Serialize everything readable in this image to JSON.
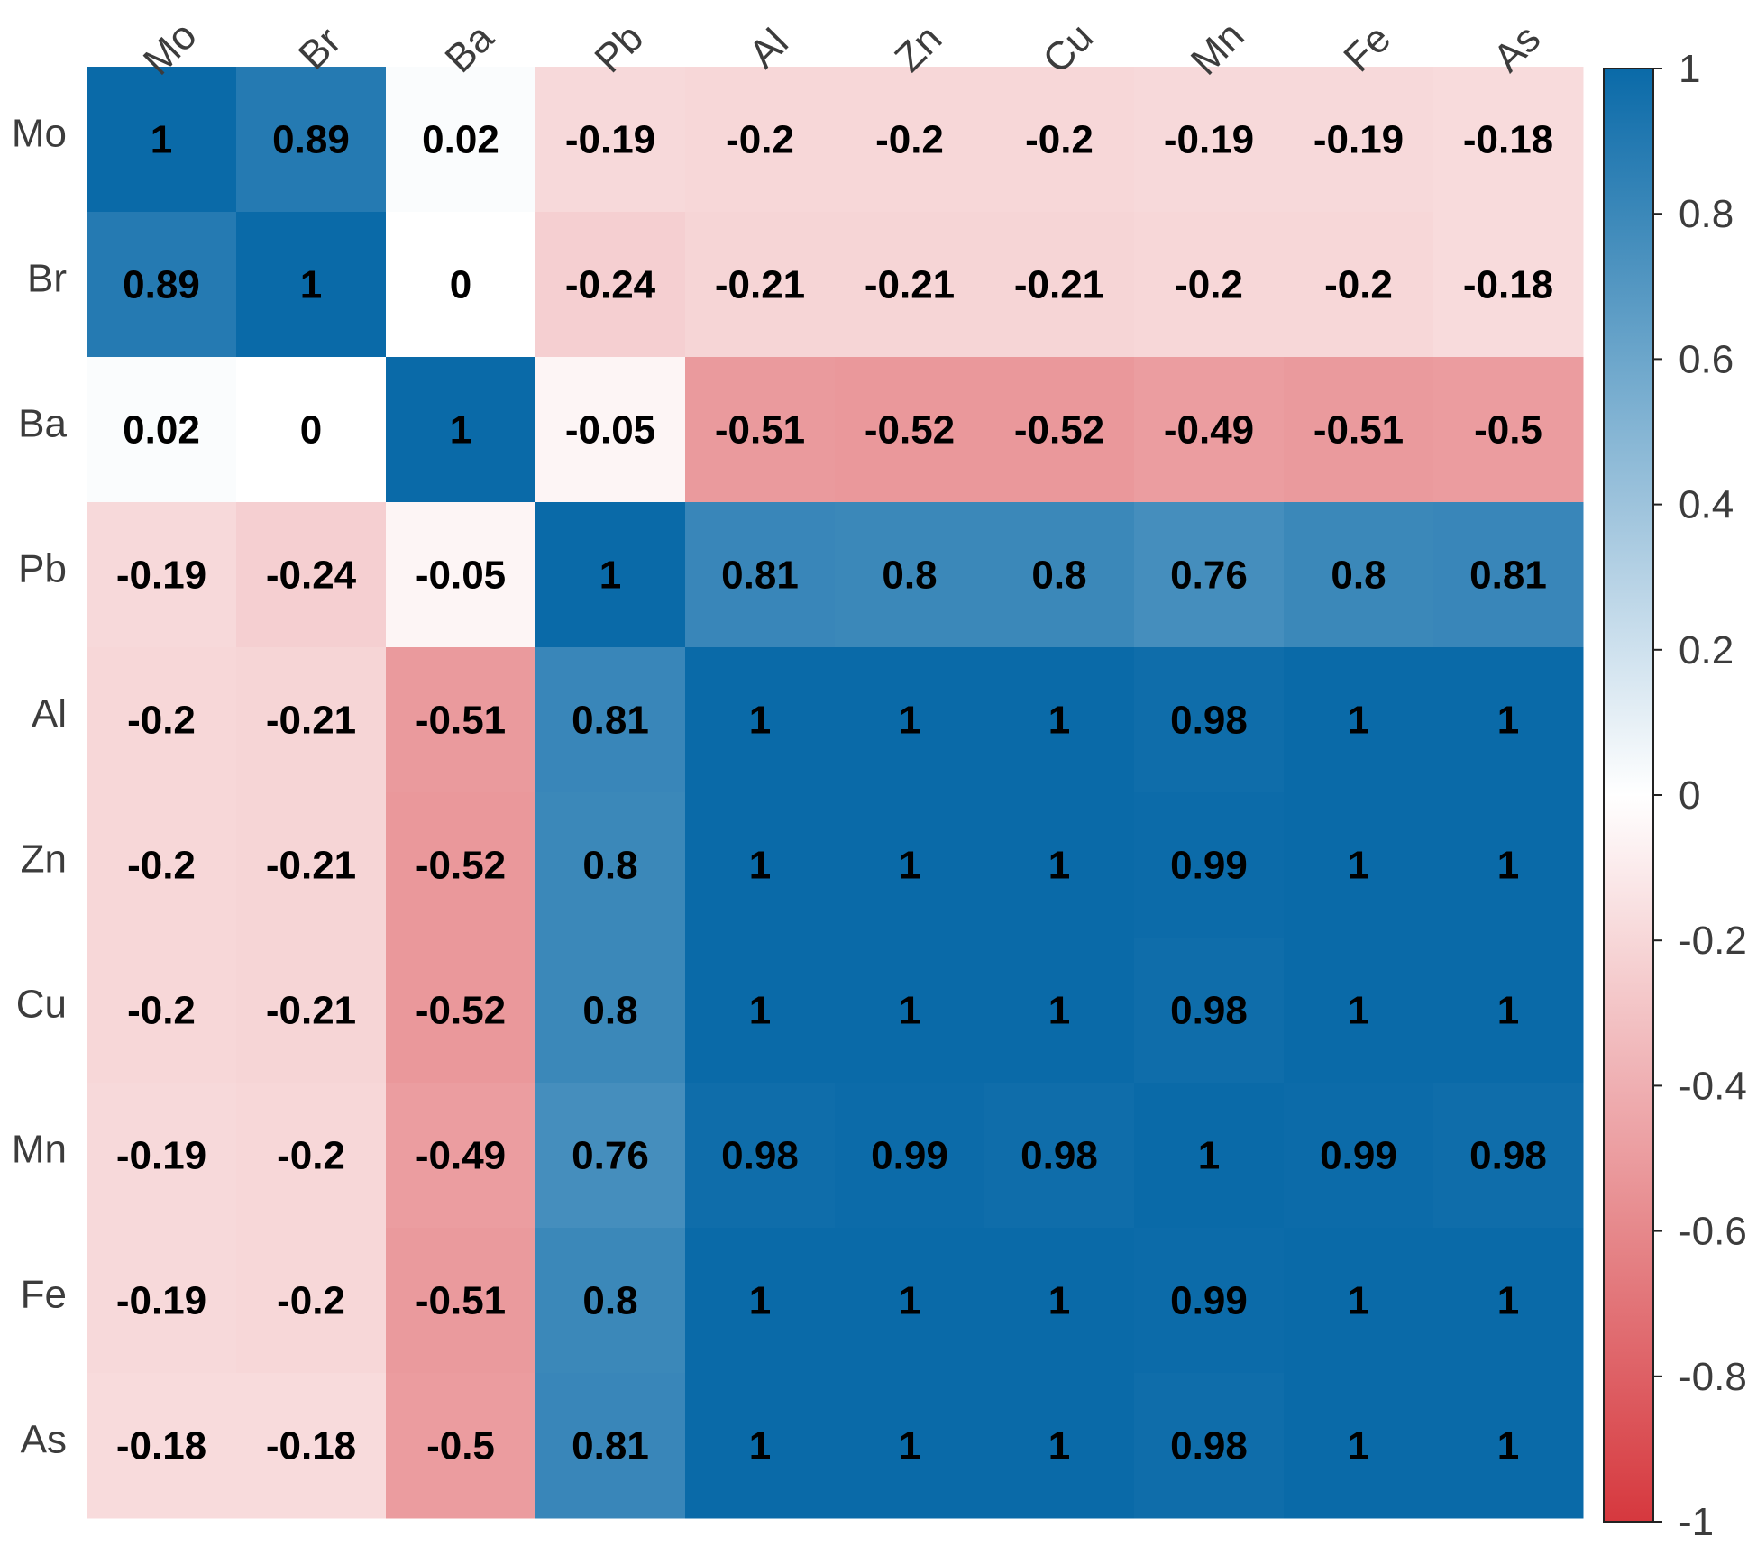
{
  "chart_data": {
    "type": "heatmap",
    "title": "",
    "xlabel": "",
    "ylabel": "",
    "variables": [
      "Mo",
      "Br",
      "Ba",
      "Pb",
      "Al",
      "Zn",
      "Cu",
      "Mn",
      "Fe",
      "As"
    ],
    "matrix": [
      [
        1,
        0.89,
        0.02,
        -0.19,
        -0.2,
        -0.2,
        -0.2,
        -0.19,
        -0.19,
        -0.18
      ],
      [
        0.89,
        1,
        0,
        -0.24,
        -0.21,
        -0.21,
        -0.21,
        -0.2,
        -0.2,
        -0.18
      ],
      [
        0.02,
        0,
        1,
        -0.05,
        -0.51,
        -0.52,
        -0.52,
        -0.49,
        -0.51,
        -0.5
      ],
      [
        -0.19,
        -0.24,
        -0.05,
        1,
        0.81,
        0.8,
        0.8,
        0.76,
        0.8,
        0.81
      ],
      [
        -0.2,
        -0.21,
        -0.51,
        0.81,
        1,
        1,
        1,
        0.98,
        1,
        1
      ],
      [
        -0.2,
        -0.21,
        -0.52,
        0.8,
        1,
        1,
        1,
        0.99,
        1,
        1
      ],
      [
        -0.2,
        -0.21,
        -0.52,
        0.8,
        1,
        1,
        1,
        0.98,
        1,
        1
      ],
      [
        -0.19,
        -0.2,
        -0.49,
        0.76,
        0.98,
        0.99,
        0.98,
        1,
        0.99,
        0.98
      ],
      [
        -0.19,
        -0.2,
        -0.51,
        0.8,
        1,
        1,
        1,
        0.99,
        1,
        1
      ],
      [
        -0.18,
        -0.18,
        -0.5,
        0.81,
        1,
        1,
        1,
        0.98,
        1,
        1
      ]
    ],
    "colorbar": {
      "range": [
        -1,
        1
      ],
      "ticks": [
        1,
        0.8,
        0.6,
        0.4,
        0.2,
        0,
        -0.2,
        -0.4,
        -0.6,
        -0.8,
        -1
      ],
      "tick_labels": [
        "1",
        "0.8",
        "0.6",
        "0.4",
        "0.2",
        "0",
        "-0.2",
        "-0.4",
        "-0.6",
        "-0.8",
        "-1"
      ],
      "colors": {
        "negative": "#d6383e",
        "neutral": "#ffffff",
        "positive": "#0a6aa8"
      }
    },
    "grid": false,
    "legend": "right"
  }
}
